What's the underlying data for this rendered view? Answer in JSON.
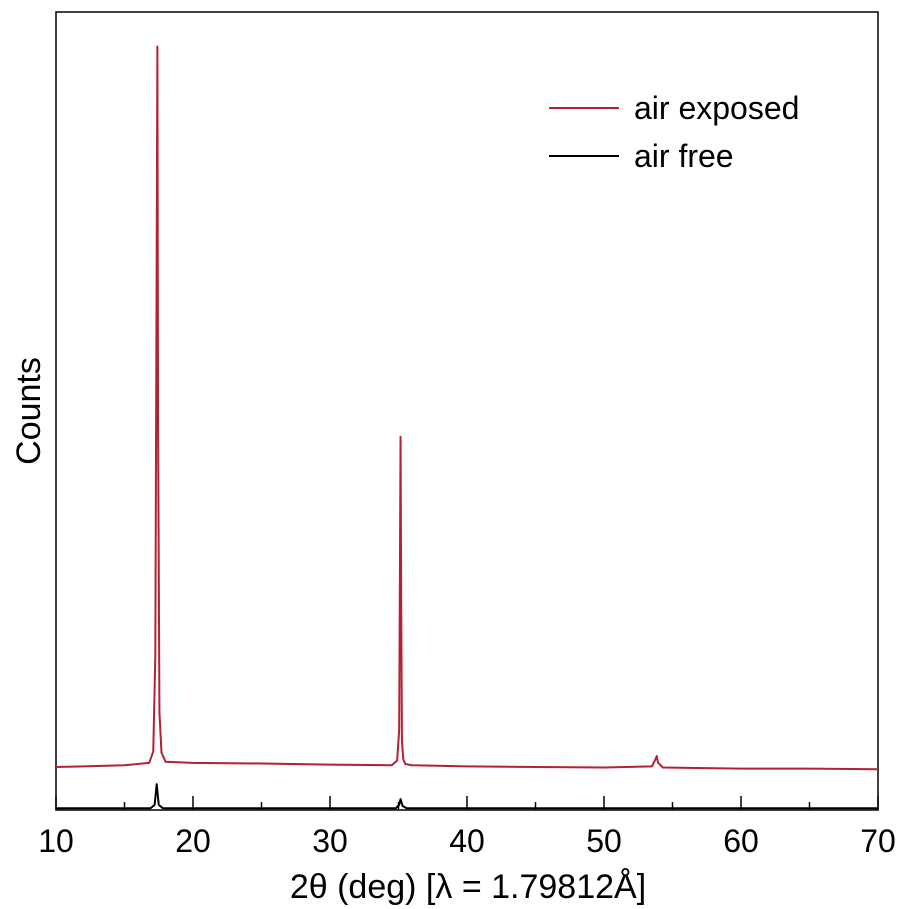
{
  "chart_data": {
    "type": "line",
    "title": "",
    "xlabel": "2θ (deg) [λ = 1.79812Å]",
    "ylabel": "Counts",
    "xlim": [
      10,
      70
    ],
    "ylim": [
      -3.5,
      66
    ],
    "x_ticks": [
      10,
      20,
      30,
      40,
      50,
      60,
      70
    ],
    "x_tick_labels": [
      "10",
      "20",
      "30",
      "40",
      "50",
      "60",
      "70"
    ],
    "y_ticks_shown": false,
    "grid": false,
    "legend_position": "top-right",
    "series": [
      {
        "name": "air exposed",
        "color": "#b22234",
        "baseline": 0,
        "x": [
          10,
          12,
          15,
          16.8,
          17.1,
          17.25,
          17.35,
          17.4,
          17.45,
          17.55,
          17.7,
          18.0,
          20,
          25,
          30,
          34.5,
          34.9,
          35.05,
          35.15,
          35.2,
          35.25,
          35.35,
          35.5,
          36,
          40,
          45,
          50,
          53.5,
          53.75,
          53.85,
          53.95,
          54.3,
          60,
          65,
          70
        ],
        "y": [
          0.25,
          0.3,
          0.4,
          0.6,
          1.6,
          10,
          45,
          63,
          30,
          5,
          1.5,
          0.7,
          0.6,
          0.55,
          0.45,
          0.4,
          0.8,
          3.5,
          29,
          14,
          2.5,
          0.9,
          0.5,
          0.4,
          0.3,
          0.25,
          0.2,
          0.3,
          0.9,
          1.2,
          0.6,
          0.2,
          0.1,
          0.1,
          0.05
        ]
      },
      {
        "name": "air free",
        "color": "#000000",
        "baseline": -3.35,
        "x": [
          10,
          16.9,
          17.2,
          17.35,
          17.5,
          17.8,
          34.8,
          35.05,
          35.15,
          35.3,
          35.6,
          70
        ],
        "y": [
          0,
          0,
          0.3,
          2.1,
          0.3,
          0,
          0,
          0.3,
          0.8,
          0.2,
          0,
          0
        ]
      }
    ]
  }
}
